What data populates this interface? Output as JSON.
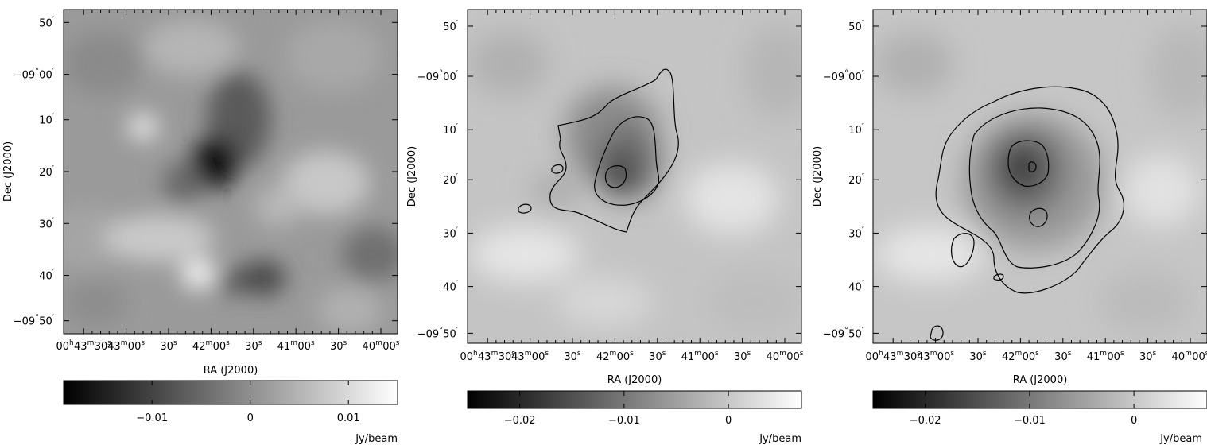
{
  "labels": {
    "ra_axis": "RA (J2000)",
    "dec_axis": "Dec (J2000)",
    "unit": "Jy/beam"
  },
  "ra_ticks": [
    {
      "h": "00",
      "hu": "h",
      "m": "43",
      "mu": "m",
      "s": "30",
      "su": "s"
    },
    {
      "m": "43",
      "mu": "m",
      "s": "00",
      "su": "s"
    },
    {
      "s": "30",
      "su": "s"
    },
    {
      "m": "42",
      "mu": "m",
      "s": "00",
      "su": "s"
    },
    {
      "s": "30",
      "su": "s"
    },
    {
      "m": "41",
      "mu": "m",
      "s": "00",
      "su": "s"
    },
    {
      "s": "30",
      "su": "s"
    },
    {
      "m": "40",
      "mu": "m",
      "s": "00",
      "su": "s"
    }
  ],
  "dec_ticks": [
    {
      "main": "50",
      "unit": "′"
    },
    {
      "main": "−09",
      "unit": "°",
      "tail": "00",
      "tail_unit": "′"
    },
    {
      "main": "10",
      "unit": "′"
    },
    {
      "main": "20",
      "unit": "′"
    },
    {
      "main": "30",
      "unit": "′"
    },
    {
      "main": "40",
      "unit": "′"
    },
    {
      "main": "−09",
      "unit": "°",
      "tail": "50",
      "tail_unit": "′"
    }
  ],
  "panels": [
    {
      "id": "left",
      "colorbar": {
        "min": -0.019,
        "max": 0.015,
        "ticks": [
          "−0.01",
          "0",
          "0.01"
        ],
        "tick_values": [
          -0.01,
          0,
          0.01
        ]
      },
      "contours": false
    },
    {
      "id": "middle",
      "colorbar": {
        "min": -0.025,
        "max": 0.007,
        "ticks": [
          "−0.02",
          "−0.01",
          "0"
        ],
        "tick_values": [
          -0.02,
          -0.01,
          0
        ]
      },
      "contours": true
    },
    {
      "id": "right",
      "colorbar": {
        "min": -0.025,
        "max": 0.007,
        "ticks": [
          "−0.02",
          "−0.01",
          "0"
        ],
        "tick_values": [
          -0.02,
          -0.01,
          0
        ]
      },
      "contours": true
    }
  ]
}
